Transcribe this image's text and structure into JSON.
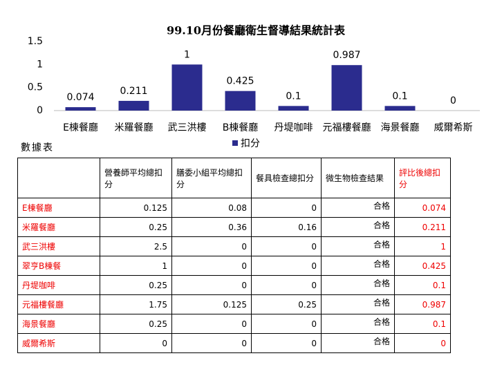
{
  "chart_data": {
    "type": "bar",
    "title": "99.10月份餐廳衛生督導結果統計表",
    "categories": [
      "E棟餐廳",
      "米羅餐廳",
      "武三洪樓",
      "B棟餐廳",
      "丹堤咖啡",
      "元福樓餐廳",
      "海景餐廳",
      "威爾希斯"
    ],
    "series": [
      {
        "name": "扣分",
        "color": "#2b2c8e",
        "values": [
          0.074,
          0.211,
          1,
          0.425,
          0.1,
          0.987,
          0.1,
          0
        ]
      }
    ],
    "ylim": [
      0,
      1.5
    ],
    "yticks": [
      0,
      0.5,
      1,
      1.5
    ],
    "grid": false,
    "legend": "bottom"
  },
  "table": {
    "caption": "數據表",
    "header": [
      "",
      "營養師平均總扣分",
      "膳委小組平均總扣分",
      "餐具檢查總扣分",
      "微生物檢查結果",
      "評比後總扣分"
    ],
    "rows": [
      [
        "E棟餐廳",
        0.125,
        0.08,
        0,
        "合格",
        0.074
      ],
      [
        "米羅餐廳",
        0.25,
        0.36,
        0.16,
        "合格",
        0.211
      ],
      [
        "武三洪樓",
        2.5,
        0,
        0,
        "合格",
        1
      ],
      [
        "翠亨B棟餐",
        1,
        0,
        0,
        "合格",
        0.425
      ],
      [
        "丹堤咖啡",
        0.25,
        0,
        0,
        "合格",
        0.1
      ],
      [
        "元福樓餐廳",
        1.75,
        0.125,
        0.25,
        "合格",
        0.987
      ],
      [
        "海景餐廳",
        0.25,
        0,
        0,
        "合格",
        0.1
      ],
      [
        "威爾希斯",
        0,
        0,
        0,
        "合格",
        0
      ]
    ]
  }
}
